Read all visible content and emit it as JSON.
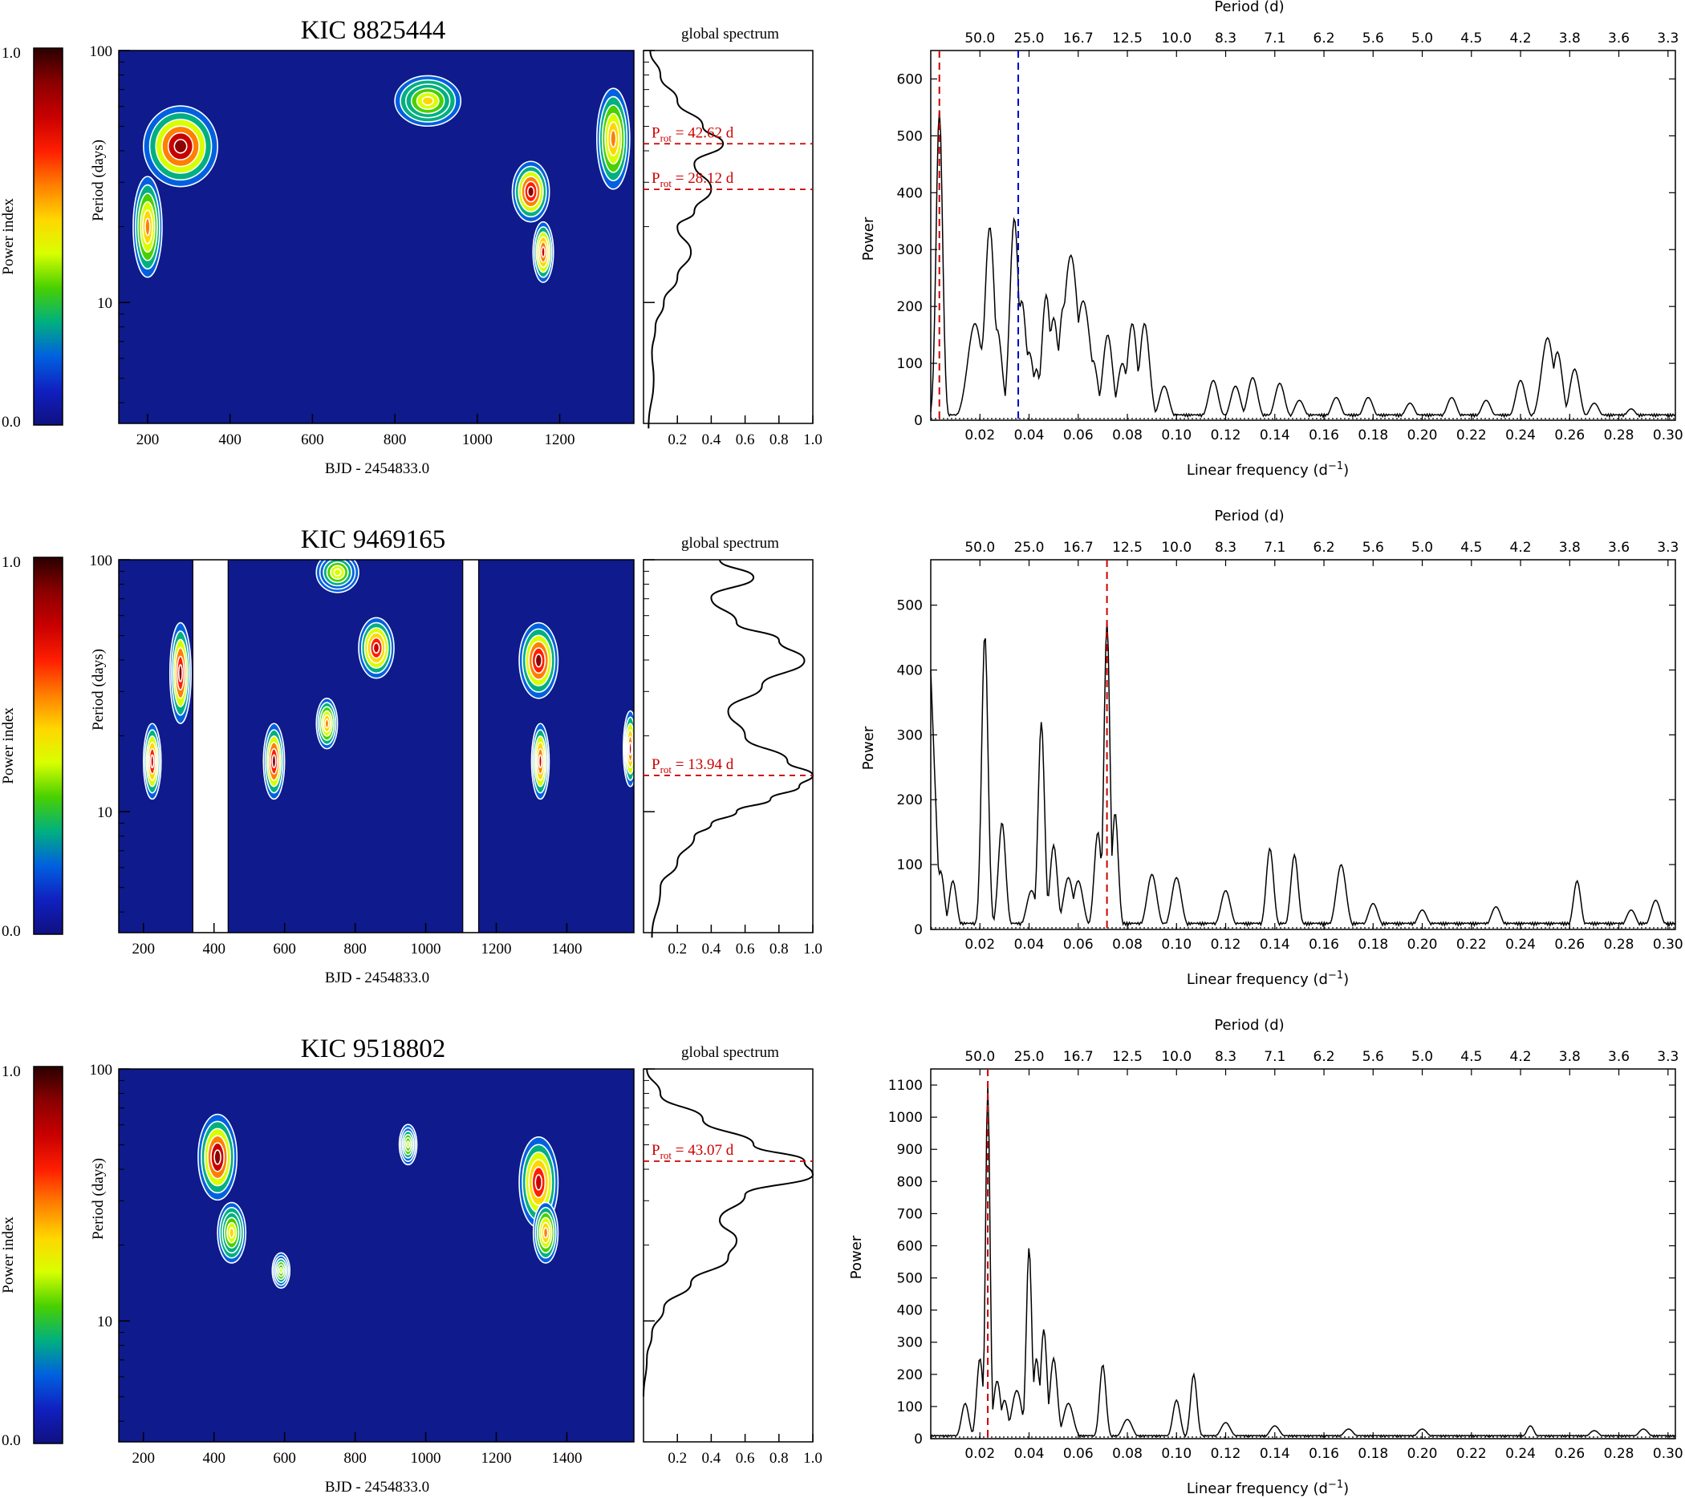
{
  "colorbar": {
    "label": "Power index",
    "tick_top": "1.0",
    "tick_bottom": "0.0",
    "stops": [
      "#2a0000",
      "#8b0000",
      "#c80000",
      "#ff1e00",
      "#ff7f00",
      "#ffd700",
      "#d8ff00",
      "#48d000",
      "#00b080",
      "#0060e0",
      "#1020c0",
      "#101080"
    ]
  },
  "colors": {
    "red_marker": "#cc0000",
    "blue_marker": "#0000cc",
    "wavelet_background": "#0f1a8c",
    "contour": "#ffffff"
  },
  "panels": [
    {
      "id": "kic8825444",
      "title": "KIC 8825444",
      "wavelet": {
        "ylabel": "Period (days)",
        "xlabel": "BJD - 2454833.0",
        "yticks": [
          "100",
          "10"
        ],
        "xticks": [
          200,
          400,
          600,
          800,
          1000,
          1200
        ],
        "xlim": [
          130,
          1380
        ],
        "gaps": [],
        "hotspots": [
          {
            "x": 280,
            "logp": 1.62,
            "rx": 90,
            "ry": 0.16,
            "level": 0.95
          },
          {
            "x": 200,
            "logp": 1.3,
            "rx": 35,
            "ry": 0.2,
            "level": 0.6
          },
          {
            "x": 880,
            "logp": 1.8,
            "rx": 80,
            "ry": 0.1,
            "level": 0.55
          },
          {
            "x": 1130,
            "logp": 1.44,
            "rx": 45,
            "ry": 0.12,
            "level": 0.9
          },
          {
            "x": 1160,
            "logp": 1.2,
            "rx": 25,
            "ry": 0.12,
            "level": 0.8
          },
          {
            "x": 1330,
            "logp": 1.65,
            "rx": 40,
            "ry": 0.2,
            "level": 0.6
          }
        ]
      },
      "global_spectrum": {
        "title": "global spectrum",
        "xticks": [
          "0.2",
          "0.4",
          "0.6",
          "0.8",
          "1.0"
        ],
        "xlim": [
          0,
          1
        ],
        "logp": [
          0.5,
          0.7,
          0.8,
          0.9,
          1.0,
          1.1,
          1.2,
          1.3,
          1.36,
          1.45,
          1.55,
          1.63,
          1.7,
          1.8,
          1.9,
          2.0
        ],
        "power": [
          0.03,
          0.06,
          0.05,
          0.07,
          0.12,
          0.2,
          0.28,
          0.2,
          0.3,
          0.4,
          0.3,
          0.47,
          0.35,
          0.2,
          0.1,
          0.04
        ],
        "markers": [
          {
            "logp": 1.63,
            "label_prefix": "P",
            "label_sub": "rot",
            "label_suffix": " = 42.62 d"
          },
          {
            "logp": 1.449,
            "label_prefix": "P",
            "label_sub": "rot",
            "label_suffix": " = 28.12 d"
          }
        ]
      },
      "periodogram": {
        "top_label": "Period (d)",
        "xlabel_prefix": "Linear frequency (d",
        "xlabel_sup": "−1",
        "xlabel_suffix": ")",
        "ylabel": "Power",
        "ylim": [
          0,
          650
        ],
        "yticks": [
          0,
          100,
          200,
          300,
          400,
          500,
          600
        ],
        "xlim": [
          0,
          0.303
        ],
        "xticks": [
          0.02,
          0.04,
          0.06,
          0.08,
          0.1,
          0.12,
          0.14,
          0.16,
          0.18,
          0.2,
          0.22,
          0.24,
          0.26,
          0.28,
          0.3
        ],
        "top_ticks": [
          "50.0",
          "25.0",
          "16.7",
          "12.5",
          "10.0",
          "8.3",
          "7.1",
          "6.2",
          "5.6",
          "5.0",
          "4.5",
          "4.2",
          "3.8",
          "3.6",
          "3.3"
        ],
        "peaks": [
          [
            0.0035,
            545,
            0.0013
          ],
          [
            0.018,
            170,
            0.003
          ],
          [
            0.022,
            155,
            0.002
          ],
          [
            0.024,
            340,
            0.002
          ],
          [
            0.027,
            160,
            0.002
          ],
          [
            0.034,
            355,
            0.0018
          ],
          [
            0.037,
            210,
            0.002
          ],
          [
            0.04,
            120,
            0.002
          ],
          [
            0.043,
            90,
            0.0015
          ],
          [
            0.047,
            220,
            0.0018
          ],
          [
            0.05,
            180,
            0.002
          ],
          [
            0.054,
            200,
            0.002
          ],
          [
            0.057,
            290,
            0.003
          ],
          [
            0.062,
            210,
            0.003
          ],
          [
            0.066,
            105,
            0.002
          ],
          [
            0.072,
            150,
            0.002
          ],
          [
            0.078,
            100,
            0.002
          ],
          [
            0.082,
            170,
            0.002
          ],
          [
            0.087,
            170,
            0.002
          ],
          [
            0.095,
            60,
            0.002
          ],
          [
            0.115,
            70,
            0.002
          ],
          [
            0.124,
            60,
            0.002
          ],
          [
            0.131,
            75,
            0.002
          ],
          [
            0.142,
            65,
            0.002
          ],
          [
            0.15,
            35,
            0.002
          ],
          [
            0.165,
            40,
            0.002
          ],
          [
            0.178,
            40,
            0.002
          ],
          [
            0.195,
            30,
            0.002
          ],
          [
            0.212,
            40,
            0.002
          ],
          [
            0.226,
            35,
            0.002
          ],
          [
            0.24,
            70,
            0.002
          ],
          [
            0.251,
            145,
            0.0025
          ],
          [
            0.255,
            120,
            0.002
          ],
          [
            0.262,
            90,
            0.002
          ],
          [
            0.27,
            30,
            0.002
          ],
          [
            0.285,
            20,
            0.002
          ]
        ],
        "markers": [
          {
            "freq": 0.0035,
            "color": "red"
          },
          {
            "freq": 0.0356,
            "color": "blue"
          }
        ]
      }
    },
    {
      "id": "kic9469165",
      "title": "KIC 9469165",
      "wavelet": {
        "ylabel": "Period (days)",
        "xlabel": "BJD - 2454833.0",
        "yticks": [
          "100",
          "10"
        ],
        "xticks": [
          200,
          400,
          600,
          800,
          1000,
          1200,
          1400
        ],
        "xlim": [
          130,
          1590
        ],
        "gaps": [
          [
            340,
            440
          ],
          [
            1105,
            1150
          ]
        ],
        "hotspots": [
          {
            "x": 305,
            "logp": 1.55,
            "rx": 30,
            "ry": 0.2,
            "level": 0.9
          },
          {
            "x": 225,
            "logp": 1.2,
            "rx": 25,
            "ry": 0.15,
            "level": 0.85
          },
          {
            "x": 570,
            "logp": 1.2,
            "rx": 30,
            "ry": 0.15,
            "level": 0.9
          },
          {
            "x": 750,
            "logp": 1.95,
            "rx": 60,
            "ry": 0.08,
            "level": 0.5
          },
          {
            "x": 860,
            "logp": 1.65,
            "rx": 50,
            "ry": 0.12,
            "level": 0.85
          },
          {
            "x": 720,
            "logp": 1.35,
            "rx": 30,
            "ry": 0.1,
            "level": 0.65
          },
          {
            "x": 1320,
            "logp": 1.6,
            "rx": 55,
            "ry": 0.15,
            "level": 0.9
          },
          {
            "x": 1325,
            "logp": 1.2,
            "rx": 25,
            "ry": 0.15,
            "level": 0.8
          },
          {
            "x": 1580,
            "logp": 1.25,
            "rx": 20,
            "ry": 0.15,
            "level": 0.8
          }
        ]
      },
      "global_spectrum": {
        "title": "global spectrum",
        "xticks": [
          "0.2",
          "0.4",
          "0.6",
          "0.8",
          "1.0"
        ],
        "xlim": [
          0,
          1
        ],
        "logp": [
          0.5,
          0.7,
          0.8,
          0.9,
          0.95,
          1.0,
          1.05,
          1.1,
          1.144,
          1.2,
          1.3,
          1.4,
          1.5,
          1.6,
          1.68,
          1.75,
          1.85,
          1.93,
          2.0
        ],
        "power": [
          0.05,
          0.1,
          0.2,
          0.3,
          0.4,
          0.55,
          0.75,
          0.92,
          1.0,
          0.85,
          0.6,
          0.5,
          0.7,
          0.95,
          0.8,
          0.55,
          0.4,
          0.65,
          0.45
        ],
        "markers": [
          {
            "logp": 1.144,
            "label_prefix": "P",
            "label_sub": "rot",
            "label_suffix": " = 13.94 d"
          }
        ]
      },
      "periodogram": {
        "top_label": "Period (d)",
        "xlabel_prefix": "Linear frequency (d",
        "xlabel_sup": "−1",
        "xlabel_suffix": ")",
        "ylabel": "Power",
        "ylim": [
          0,
          570
        ],
        "yticks": [
          0,
          100,
          200,
          300,
          400,
          500
        ],
        "xlim": [
          0,
          0.303
        ],
        "xticks": [
          0.02,
          0.04,
          0.06,
          0.08,
          0.1,
          0.12,
          0.14,
          0.16,
          0.18,
          0.2,
          0.22,
          0.24,
          0.26,
          0.28,
          0.3
        ],
        "top_ticks": [
          "50.0",
          "25.0",
          "16.7",
          "12.5",
          "10.0",
          "8.3",
          "7.1",
          "6.2",
          "5.6",
          "5.0",
          "4.5",
          "4.2",
          "3.8",
          "3.6",
          "3.3"
        ],
        "edge_start": 400,
        "peaks": [
          [
            0.004,
            90,
            0.0015
          ],
          [
            0.009,
            75,
            0.0015
          ],
          [
            0.022,
            455,
            0.0013
          ],
          [
            0.029,
            165,
            0.0015
          ],
          [
            0.041,
            60,
            0.002
          ],
          [
            0.045,
            320,
            0.0013
          ],
          [
            0.05,
            130,
            0.0015
          ],
          [
            0.056,
            80,
            0.002
          ],
          [
            0.06,
            75,
            0.002
          ],
          [
            0.068,
            150,
            0.0015
          ],
          [
            0.0717,
            475,
            0.0012
          ],
          [
            0.075,
            180,
            0.0013
          ],
          [
            0.09,
            85,
            0.002
          ],
          [
            0.1,
            80,
            0.002
          ],
          [
            0.12,
            60,
            0.002
          ],
          [
            0.138,
            125,
            0.0015
          ],
          [
            0.148,
            115,
            0.0015
          ],
          [
            0.167,
            100,
            0.002
          ],
          [
            0.18,
            40,
            0.002
          ],
          [
            0.2,
            30,
            0.002
          ],
          [
            0.23,
            35,
            0.002
          ],
          [
            0.263,
            75,
            0.0015
          ],
          [
            0.285,
            30,
            0.002
          ],
          [
            0.295,
            45,
            0.002
          ]
        ],
        "markers": [
          {
            "freq": 0.0717,
            "color": "red"
          }
        ]
      }
    },
    {
      "id": "kic9518802",
      "title": "KIC 9518802",
      "wavelet": {
        "ylabel": "Period (days)",
        "xlabel": "BJD - 2454833.0",
        "yticks": [
          "100",
          "10"
        ],
        "xticks": [
          200,
          400,
          600,
          800,
          1000,
          1200,
          1400
        ],
        "xlim": [
          130,
          1590
        ],
        "gaps": [],
        "hotspots": [
          {
            "x": 410,
            "logp": 1.65,
            "rx": 55,
            "ry": 0.17,
            "level": 0.95
          },
          {
            "x": 450,
            "logp": 1.35,
            "rx": 40,
            "ry": 0.12,
            "level": 0.55
          },
          {
            "x": 1320,
            "logp": 1.55,
            "rx": 55,
            "ry": 0.18,
            "level": 0.85
          },
          {
            "x": 1340,
            "logp": 1.35,
            "rx": 35,
            "ry": 0.12,
            "level": 0.6
          },
          {
            "x": 950,
            "logp": 1.7,
            "rx": 25,
            "ry": 0.08,
            "level": 0.45
          },
          {
            "x": 590,
            "logp": 1.2,
            "rx": 25,
            "ry": 0.07,
            "level": 0.45
          }
        ]
      },
      "global_spectrum": {
        "title": "global spectrum",
        "xticks": [
          "0.2",
          "0.4",
          "0.6",
          "0.8",
          "1.0"
        ],
        "xlim": [
          0,
          1
        ],
        "logp": [
          0.7,
          0.85,
          0.95,
          1.05,
          1.15,
          1.25,
          1.32,
          1.4,
          1.5,
          1.58,
          1.634,
          1.7,
          1.8,
          1.9,
          2.0
        ],
        "power": [
          0.0,
          0.02,
          0.05,
          0.12,
          0.28,
          0.5,
          0.55,
          0.45,
          0.6,
          1.0,
          0.95,
          0.65,
          0.35,
          0.1,
          0.02
        ],
        "markers": [
          {
            "logp": 1.634,
            "label_prefix": "P",
            "label_sub": "rot",
            "label_suffix": " = 43.07 d"
          }
        ]
      },
      "periodogram": {
        "top_label": "Period (d)",
        "xlabel_prefix": "Linear frequency (d",
        "xlabel_sup": "−1",
        "xlabel_suffix": ")",
        "ylabel": "Power",
        "ylim": [
          0,
          1150
        ],
        "yticks": [
          0,
          100,
          200,
          300,
          400,
          500,
          600,
          700,
          800,
          900,
          1000,
          1100
        ],
        "xlim": [
          0,
          0.303
        ],
        "xticks": [
          0.02,
          0.04,
          0.06,
          0.08,
          0.1,
          0.12,
          0.14,
          0.16,
          0.18,
          0.2,
          0.22,
          0.24,
          0.26,
          0.28,
          0.3
        ],
        "top_ticks": [
          "50.0",
          "25.0",
          "16.7",
          "12.5",
          "10.0",
          "8.3",
          "7.1",
          "6.2",
          "5.6",
          "5.0",
          "4.5",
          "4.2",
          "3.8",
          "3.6",
          "3.3"
        ],
        "peaks": [
          [
            0.014,
            110,
            0.0015
          ],
          [
            0.02,
            250,
            0.0013
          ],
          [
            0.0232,
            1100,
            0.0009
          ],
          [
            0.027,
            180,
            0.0015
          ],
          [
            0.03,
            120,
            0.0015
          ],
          [
            0.035,
            150,
            0.002
          ],
          [
            0.04,
            595,
            0.0011
          ],
          [
            0.043,
            250,
            0.0013
          ],
          [
            0.046,
            340,
            0.0013
          ],
          [
            0.05,
            250,
            0.0015
          ],
          [
            0.056,
            110,
            0.002
          ],
          [
            0.07,
            230,
            0.0013
          ],
          [
            0.08,
            60,
            0.002
          ],
          [
            0.1,
            120,
            0.0015
          ],
          [
            0.107,
            200,
            0.0013
          ],
          [
            0.12,
            50,
            0.002
          ],
          [
            0.14,
            40,
            0.002
          ],
          [
            0.17,
            30,
            0.002
          ],
          [
            0.2,
            30,
            0.002
          ],
          [
            0.244,
            40,
            0.0015
          ],
          [
            0.27,
            25,
            0.002
          ],
          [
            0.29,
            30,
            0.002
          ]
        ],
        "markers": [
          {
            "freq": 0.0232,
            "color": "red"
          }
        ]
      }
    }
  ]
}
